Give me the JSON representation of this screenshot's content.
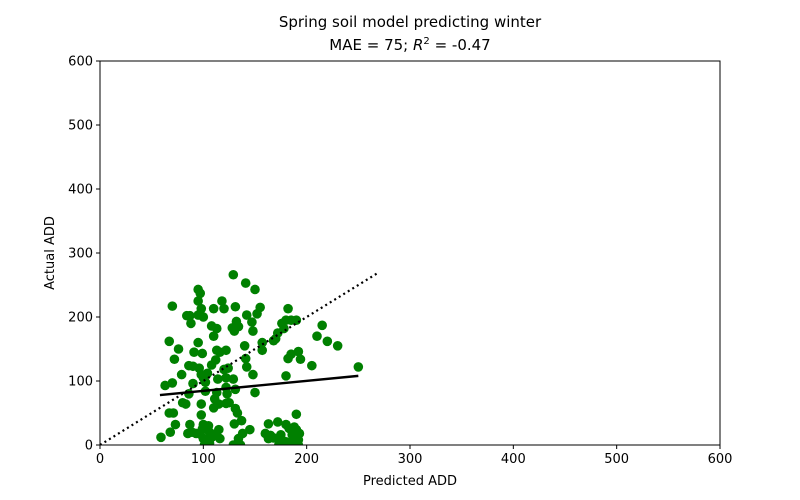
{
  "chart_data": {
    "type": "scatter",
    "title_line1": "Spring soil model predicting winter",
    "title_line2_prefix": "MAE = 75; ",
    "title_line2_r": "R",
    "title_line2_exp": "2",
    "title_line2_suffix": " = -0.47",
    "xlabel": "Predicted ADD",
    "ylabel": "Actual ADD",
    "xlim": [
      0,
      600
    ],
    "ylim": [
      0,
      600
    ],
    "xticks": [
      0,
      100,
      200,
      300,
      400,
      500,
      600
    ],
    "yticks": [
      0,
      100,
      200,
      300,
      400,
      500,
      600
    ],
    "grid": false,
    "point_color": "#008000",
    "fit_line": {
      "x": [
        58,
        250
      ],
      "y": [
        78,
        108
      ],
      "color": "#000000"
    },
    "identity_line": {
      "x": [
        0,
        268
      ],
      "y": [
        0,
        268
      ],
      "style": "dotted",
      "color": "#000000"
    },
    "points": [
      [
        70,
        217
      ],
      [
        67,
        162
      ],
      [
        63,
        93
      ],
      [
        70,
        97
      ],
      [
        72,
        134
      ],
      [
        76,
        150
      ],
      [
        79,
        110
      ],
      [
        80,
        66
      ],
      [
        67,
        50
      ],
      [
        71,
        50
      ],
      [
        73,
        32
      ],
      [
        68,
        20
      ],
      [
        59,
        12
      ],
      [
        84,
        202
      ],
      [
        87,
        202
      ],
      [
        88,
        190
      ],
      [
        86,
        124
      ],
      [
        90,
        123
      ],
      [
        86,
        80
      ],
      [
        83,
        64
      ],
      [
        85,
        18
      ],
      [
        87,
        32
      ],
      [
        89,
        20
      ],
      [
        93,
        18
      ],
      [
        90,
        96
      ],
      [
        91,
        145
      ],
      [
        95,
        243
      ],
      [
        97,
        237
      ],
      [
        95,
        225
      ],
      [
        98,
        213
      ],
      [
        95,
        203
      ],
      [
        100,
        200
      ],
      [
        95,
        160
      ],
      [
        99,
        143
      ],
      [
        96,
        120
      ],
      [
        98,
        110
      ],
      [
        100,
        105
      ],
      [
        102,
        98
      ],
      [
        104,
        112
      ],
      [
        102,
        84
      ],
      [
        98,
        64
      ],
      [
        98,
        47
      ],
      [
        100,
        32
      ],
      [
        99,
        25
      ],
      [
        97,
        17
      ],
      [
        100,
        10
      ],
      [
        104,
        5
      ],
      [
        101,
        0
      ],
      [
        106,
        3
      ],
      [
        103,
        26
      ],
      [
        106,
        20
      ],
      [
        105,
        30
      ],
      [
        110,
        58
      ],
      [
        108,
        125
      ],
      [
        108,
        186
      ],
      [
        110,
        170
      ],
      [
        113,
        182
      ],
      [
        110,
        213
      ],
      [
        113,
        148
      ],
      [
        116,
        145
      ],
      [
        112,
        133
      ],
      [
        114,
        103
      ],
      [
        113,
        82
      ],
      [
        111,
        72
      ],
      [
        115,
        64
      ],
      [
        115,
        24
      ],
      [
        111,
        17
      ],
      [
        108,
        12
      ],
      [
        116,
        10
      ],
      [
        118,
        225
      ],
      [
        120,
        213
      ],
      [
        122,
        148
      ],
      [
        120,
        118
      ],
      [
        122,
        105
      ],
      [
        124,
        120
      ],
      [
        122,
        90
      ],
      [
        123,
        80
      ],
      [
        122,
        65
      ],
      [
        125,
        66
      ],
      [
        129,
        266
      ],
      [
        128,
        183
      ],
      [
        130,
        178
      ],
      [
        132,
        193
      ],
      [
        131,
        216
      ],
      [
        134,
        185
      ],
      [
        129,
        103
      ],
      [
        131,
        87
      ],
      [
        131,
        57
      ],
      [
        133,
        50
      ],
      [
        130,
        33
      ],
      [
        134,
        10
      ],
      [
        129,
        0
      ],
      [
        133,
        0
      ],
      [
        136,
        0
      ],
      [
        138,
        18
      ],
      [
        137,
        38
      ],
      [
        141,
        253
      ],
      [
        142,
        203
      ],
      [
        140,
        155
      ],
      [
        142,
        122
      ],
      [
        141,
        135
      ],
      [
        145,
        24
      ],
      [
        147,
        192
      ],
      [
        150,
        243
      ],
      [
        148,
        178
      ],
      [
        150,
        82
      ],
      [
        148,
        110
      ],
      [
        152,
        205
      ],
      [
        155,
        215
      ],
      [
        157,
        148
      ],
      [
        157,
        160
      ],
      [
        160,
        18
      ],
      [
        163,
        10
      ],
      [
        163,
        33
      ],
      [
        165,
        15
      ],
      [
        168,
        11
      ],
      [
        168,
        163
      ],
      [
        170,
        166
      ],
      [
        172,
        175
      ],
      [
        172,
        36
      ],
      [
        175,
        16
      ],
      [
        175,
        8
      ],
      [
        176,
        190
      ],
      [
        178,
        182
      ],
      [
        180,
        195
      ],
      [
        182,
        213
      ],
      [
        180,
        108
      ],
      [
        182,
        135
      ],
      [
        180,
        32
      ],
      [
        183,
        26
      ],
      [
        185,
        195
      ],
      [
        185,
        142
      ],
      [
        186,
        16
      ],
      [
        188,
        28
      ],
      [
        190,
        48
      ],
      [
        190,
        24
      ],
      [
        190,
        195
      ],
      [
        192,
        146
      ],
      [
        194,
        134
      ],
      [
        193,
        18
      ],
      [
        192,
        8
      ],
      [
        186,
        5
      ],
      [
        183,
        0
      ],
      [
        188,
        0
      ],
      [
        180,
        5
      ],
      [
        210,
        170
      ],
      [
        215,
        187
      ],
      [
        220,
        162
      ],
      [
        230,
        155
      ],
      [
        250,
        122
      ],
      [
        205,
        124
      ],
      [
        176,
        8
      ],
      [
        173,
        0
      ],
      [
        178,
        0
      ],
      [
        192,
        0
      ]
    ]
  }
}
